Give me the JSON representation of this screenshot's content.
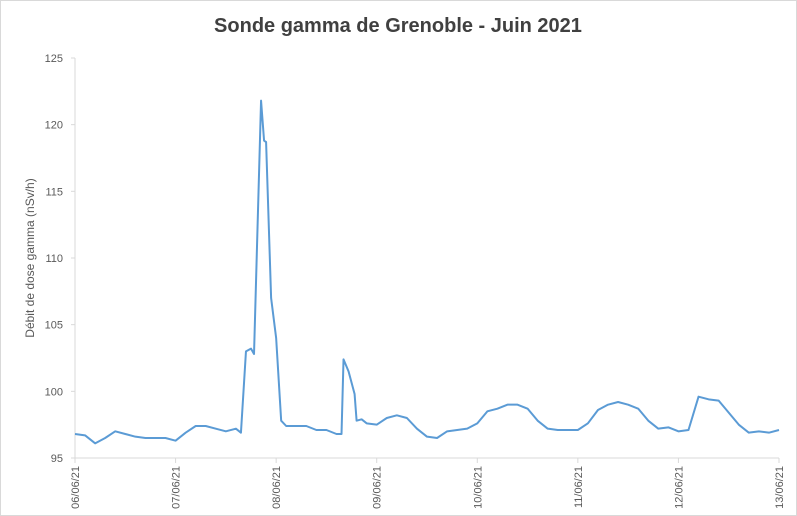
{
  "chart_data": {
    "type": "line",
    "title": "Sonde gamma de Grenoble - Juin 2021",
    "y_label": "Débit de dose gamma (nSv/h)",
    "x": [
      0,
      0.1,
      0.2,
      0.3,
      0.4,
      0.5,
      0.6,
      0.7,
      0.8,
      0.9,
      1.0,
      1.1,
      1.2,
      1.3,
      1.4,
      1.5,
      1.6,
      1.65,
      1.7,
      1.75,
      1.78,
      1.85,
      1.88,
      1.9,
      1.95,
      2.0,
      2.05,
      2.1,
      2.2,
      2.3,
      2.4,
      2.5,
      2.6,
      2.65,
      2.67,
      2.72,
      2.78,
      2.8,
      2.85,
      2.9,
      3.0,
      3.1,
      3.2,
      3.3,
      3.4,
      3.5,
      3.6,
      3.7,
      3.8,
      3.9,
      4.0,
      4.1,
      4.2,
      4.3,
      4.4,
      4.5,
      4.6,
      4.7,
      4.8,
      4.9,
      5.0,
      5.1,
      5.2,
      5.3,
      5.4,
      5.5,
      5.6,
      5.7,
      5.8,
      5.9,
      6.0,
      6.1,
      6.2,
      6.3,
      6.4,
      6.5,
      6.6,
      6.7,
      6.8,
      6.9,
      7.0
    ],
    "series": [
      {
        "color": "#5b9bd5",
        "values": [
          96.8,
          96.7,
          96.1,
          96.5,
          97.0,
          96.8,
          96.6,
          96.5,
          96.5,
          96.5,
          96.3,
          96.9,
          97.4,
          97.4,
          97.2,
          97.0,
          97.2,
          96.9,
          103.0,
          103.2,
          102.8,
          121.8,
          118.8,
          118.7,
          107,
          104,
          97.8,
          97.4,
          97.4,
          97.4,
          97.1,
          97.1,
          96.8,
          96.8,
          102.4,
          101.5,
          99.8,
          97.8,
          97.9,
          97.6,
          97.5,
          98.0,
          98.2,
          98.0,
          97.2,
          96.6,
          96.5,
          97.0,
          97.1,
          97.2,
          97.6,
          98.5,
          98.7,
          99.0,
          99.0,
          98.7,
          97.8,
          97.2,
          97.1,
          97.1,
          97.1,
          97.6,
          98.6,
          99.0,
          99.2,
          99.0,
          98.7,
          97.8,
          97.2,
          97.3,
          97.0,
          97.1,
          99.6,
          99.4,
          99.3,
          98.4,
          97.5,
          96.9,
          97.0,
          96.9,
          97.1
        ]
      }
    ],
    "xlim": [
      0,
      7
    ],
    "xticks": [
      {
        "value": 0,
        "label": "06/06/21"
      },
      {
        "value": 1,
        "label": "07/06/21"
      },
      {
        "value": 2,
        "label": "08/06/21"
      },
      {
        "value": 3,
        "label": "09/06/21"
      },
      {
        "value": 4,
        "label": "10/06/21"
      },
      {
        "value": 5,
        "label": "11/06/21"
      },
      {
        "value": 6,
        "label": "12/06/21"
      },
      {
        "value": 7,
        "label": "13/06/21"
      }
    ],
    "ylim": [
      95,
      125
    ],
    "yticks": [
      95,
      100,
      105,
      110,
      115,
      120,
      125
    ]
  }
}
